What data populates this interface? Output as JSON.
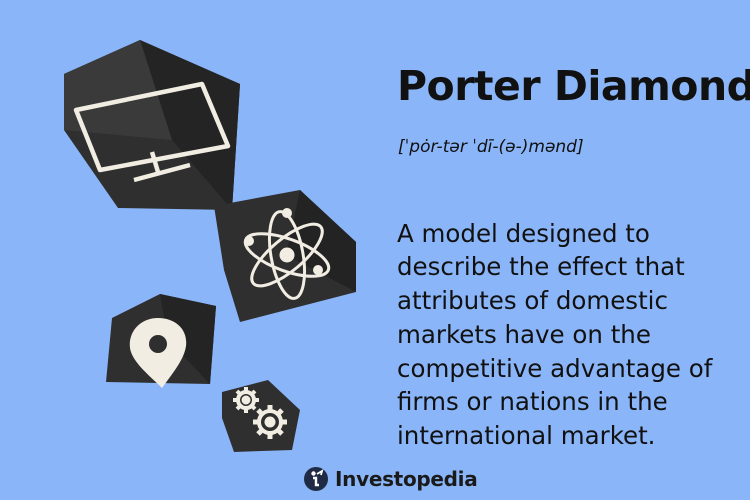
{
  "header": {
    "term": "Porter Diamond",
    "pronunciation": "[ˈpȯr-tər ˈdī-(ə-)mənd]"
  },
  "definition": {
    "text": "A model designed to describe the effect that attributes of domestic markets have on the competitive advantage of firms or nations in the international market."
  },
  "icons": [
    "monitor-icon",
    "atom-icon",
    "map-pin-icon",
    "gears-icon"
  ],
  "branding": {
    "name": "Investopedia",
    "logo": "investopedia-logo-icon"
  },
  "colors": {
    "background": "#8ab5f8",
    "tile": "#2c2c2c",
    "text": "#111111",
    "icon_stroke": "#f2ede3"
  }
}
